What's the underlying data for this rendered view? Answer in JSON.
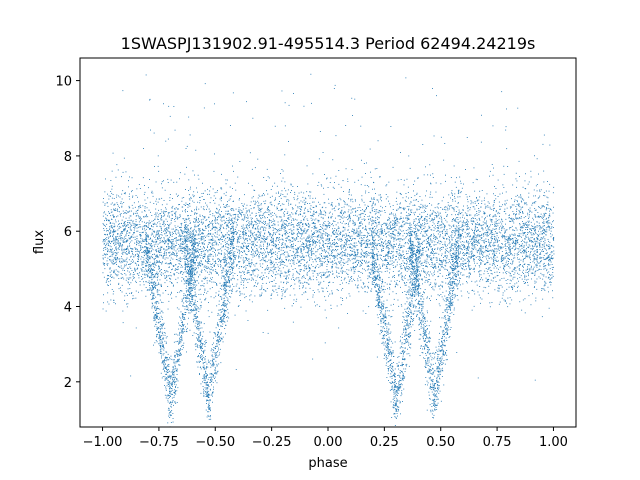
{
  "chart_data": {
    "type": "scatter",
    "title": "1SWASPJ131902.91-495514.3 Period 62494.24219s",
    "xlabel": "phase",
    "ylabel": "flux",
    "xlim": [
      -1.1,
      1.1
    ],
    "ylim": [
      0.8,
      10.6
    ],
    "xticks": [
      -1.0,
      -0.75,
      -0.5,
      -0.25,
      0.0,
      0.25,
      0.5,
      0.75,
      1.0
    ],
    "xtick_labels": [
      "−1.00",
      "−0.75",
      "−0.50",
      "−0.25",
      "0.00",
      "0.25",
      "0.50",
      "0.75",
      "1.00"
    ],
    "yticks": [
      2,
      4,
      6,
      8,
      10
    ],
    "ytick_labels": [
      "2",
      "4",
      "6",
      "8",
      "10"
    ],
    "grid": false,
    "marker_color": "#1f77b4",
    "series": [
      {
        "name": "",
        "baseline_flux": 5.7,
        "scatter_sd": 0.7,
        "phase_range": [
          -1.0,
          1.0
        ],
        "eclipses": [
          {
            "center_phase": -0.7,
            "min_flux": 1.5
          },
          {
            "center_phase": -0.53,
            "min_flux": 1.6
          },
          {
            "center_phase": 0.3,
            "min_flux": 1.5
          },
          {
            "center_phase": 0.47,
            "min_flux": 1.6
          }
        ],
        "outlier_flux_max": 10.2
      }
    ]
  }
}
